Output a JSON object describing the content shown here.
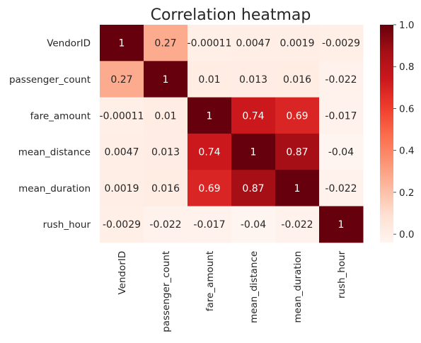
{
  "chart_data": {
    "type": "heatmap",
    "title": "Correlation heatmap",
    "labels": [
      "VendorID",
      "passenger_count",
      "fare_amount",
      "mean_distance",
      "mean_duration",
      "rush_hour"
    ],
    "values": [
      [
        1,
        0.27,
        -0.00011,
        0.0047,
        0.0019,
        -0.0029
      ],
      [
        0.27,
        1,
        0.01,
        0.013,
        0.016,
        -0.022
      ],
      [
        -0.00011,
        0.01,
        1,
        0.74,
        0.69,
        -0.017
      ],
      [
        0.0047,
        0.013,
        0.74,
        1,
        0.87,
        -0.04
      ],
      [
        0.0019,
        0.016,
        0.69,
        0.87,
        1,
        -0.022
      ],
      [
        -0.0029,
        -0.022,
        -0.017,
        -0.04,
        -0.022,
        1
      ]
    ],
    "annotations": [
      [
        "1",
        "0.27",
        "-0.00011",
        "0.0047",
        "0.0019",
        "-0.0029"
      ],
      [
        "0.27",
        "1",
        "0.01",
        "0.013",
        "0.016",
        "-0.022"
      ],
      [
        "-0.00011",
        "0.01",
        "1",
        "0.74",
        "0.69",
        "-0.017"
      ],
      [
        "0.0047",
        "0.013",
        "0.74",
        "1",
        "0.87",
        "-0.04"
      ],
      [
        "0.0019",
        "0.016",
        "0.69",
        "0.87",
        "1",
        "-0.022"
      ],
      [
        "-0.0029",
        "-0.022",
        "-0.017",
        "-0.04",
        "-0.022",
        "1"
      ]
    ],
    "colorscale": "Reds",
    "vmin": -0.04,
    "vmax": 1,
    "colorbar_ticks": [
      0,
      0.2,
      0.4,
      0.6,
      0.8,
      1
    ],
    "colorbar_tick_labels": [
      "0.0",
      "0.2",
      "0.4",
      "0.6",
      "0.8",
      "1.0"
    ]
  }
}
